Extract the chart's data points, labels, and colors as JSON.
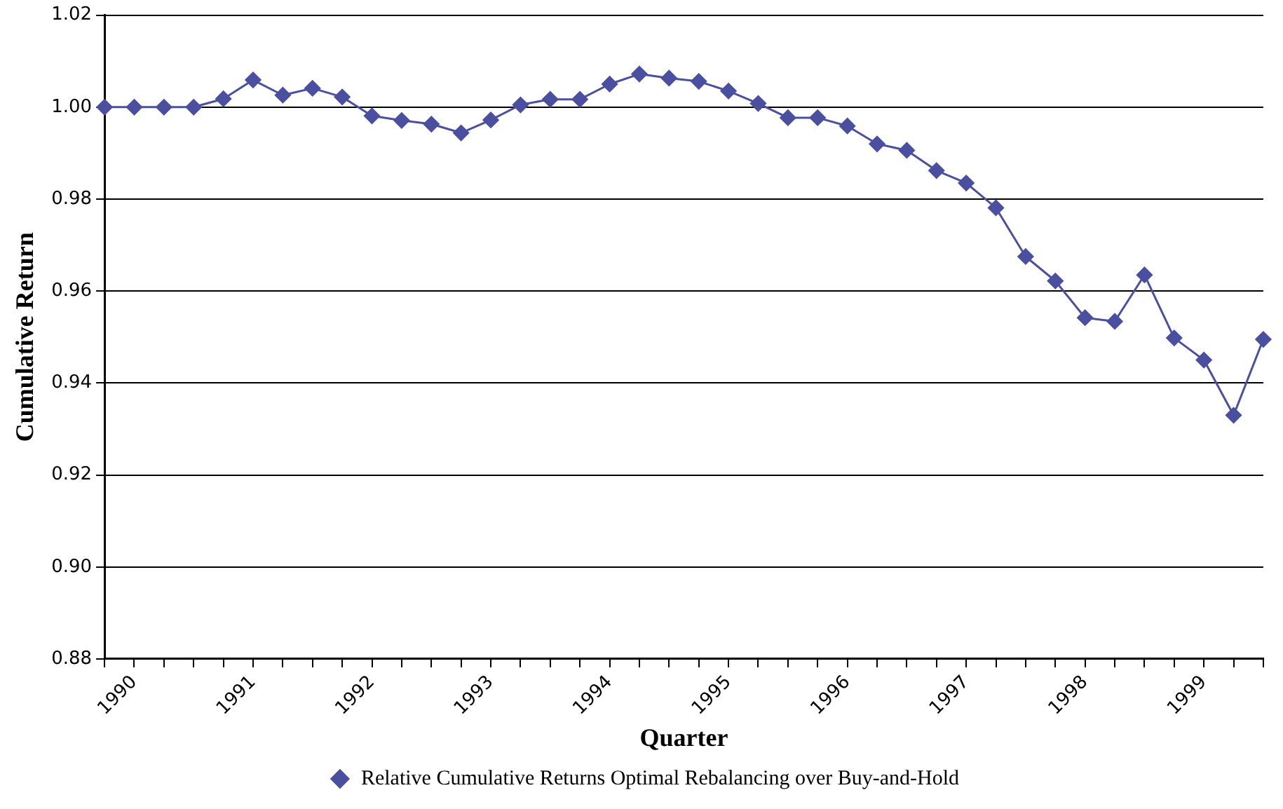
{
  "chart_data": {
    "type": "line",
    "xlabel": "Quarter",
    "ylabel": "Cumulative Return",
    "categories": [
      null,
      "1990",
      null,
      null,
      null,
      "1991",
      null,
      null,
      null,
      "1992",
      null,
      null,
      null,
      "1993",
      null,
      null,
      null,
      "1994",
      null,
      null,
      null,
      "1995",
      null,
      null,
      null,
      "1996",
      null,
      null,
      null,
      "1997",
      null,
      null,
      null,
      "1998",
      null,
      null,
      null,
      "1999",
      null,
      null
    ],
    "series": [
      {
        "name": "Relative Cumulative Returns Optimal Rebalancing over Buy-and-Hold",
        "color": "#4a4fa0",
        "values": [
          1.0,
          1.0,
          1.0,
          1.0,
          1.0018,
          1.0059,
          1.0026,
          1.0041,
          1.0022,
          0.9981,
          0.9971,
          0.9963,
          0.9944,
          0.9972,
          1.0005,
          1.0017,
          1.0017,
          1.005,
          1.0072,
          1.0063,
          1.0056,
          1.0035,
          1.0008,
          0.9977,
          0.9977,
          0.9959,
          0.992,
          0.9906,
          0.9862,
          0.9835,
          0.9781,
          0.9675,
          0.9622,
          0.9542,
          0.9534,
          0.9635,
          0.9498,
          0.945,
          0.933,
          0.9495
        ]
      }
    ],
    "ylim": [
      0.88,
      1.02
    ],
    "yticks": [
      {
        "value": 0.88,
        "label": "0.88"
      },
      {
        "value": 0.9,
        "label": "0.90"
      },
      {
        "value": 0.92,
        "label": "0.92"
      },
      {
        "value": 0.94,
        "label": "0.94"
      },
      {
        "value": 0.96,
        "label": "0.96"
      },
      {
        "value": 0.98,
        "label": "0.98"
      },
      {
        "value": 1.0,
        "label": "1.00"
      },
      {
        "value": 1.02,
        "label": "1.02"
      }
    ],
    "grid": "y",
    "legend": "bottom",
    "marker": "diamond",
    "line_style": "solid"
  }
}
